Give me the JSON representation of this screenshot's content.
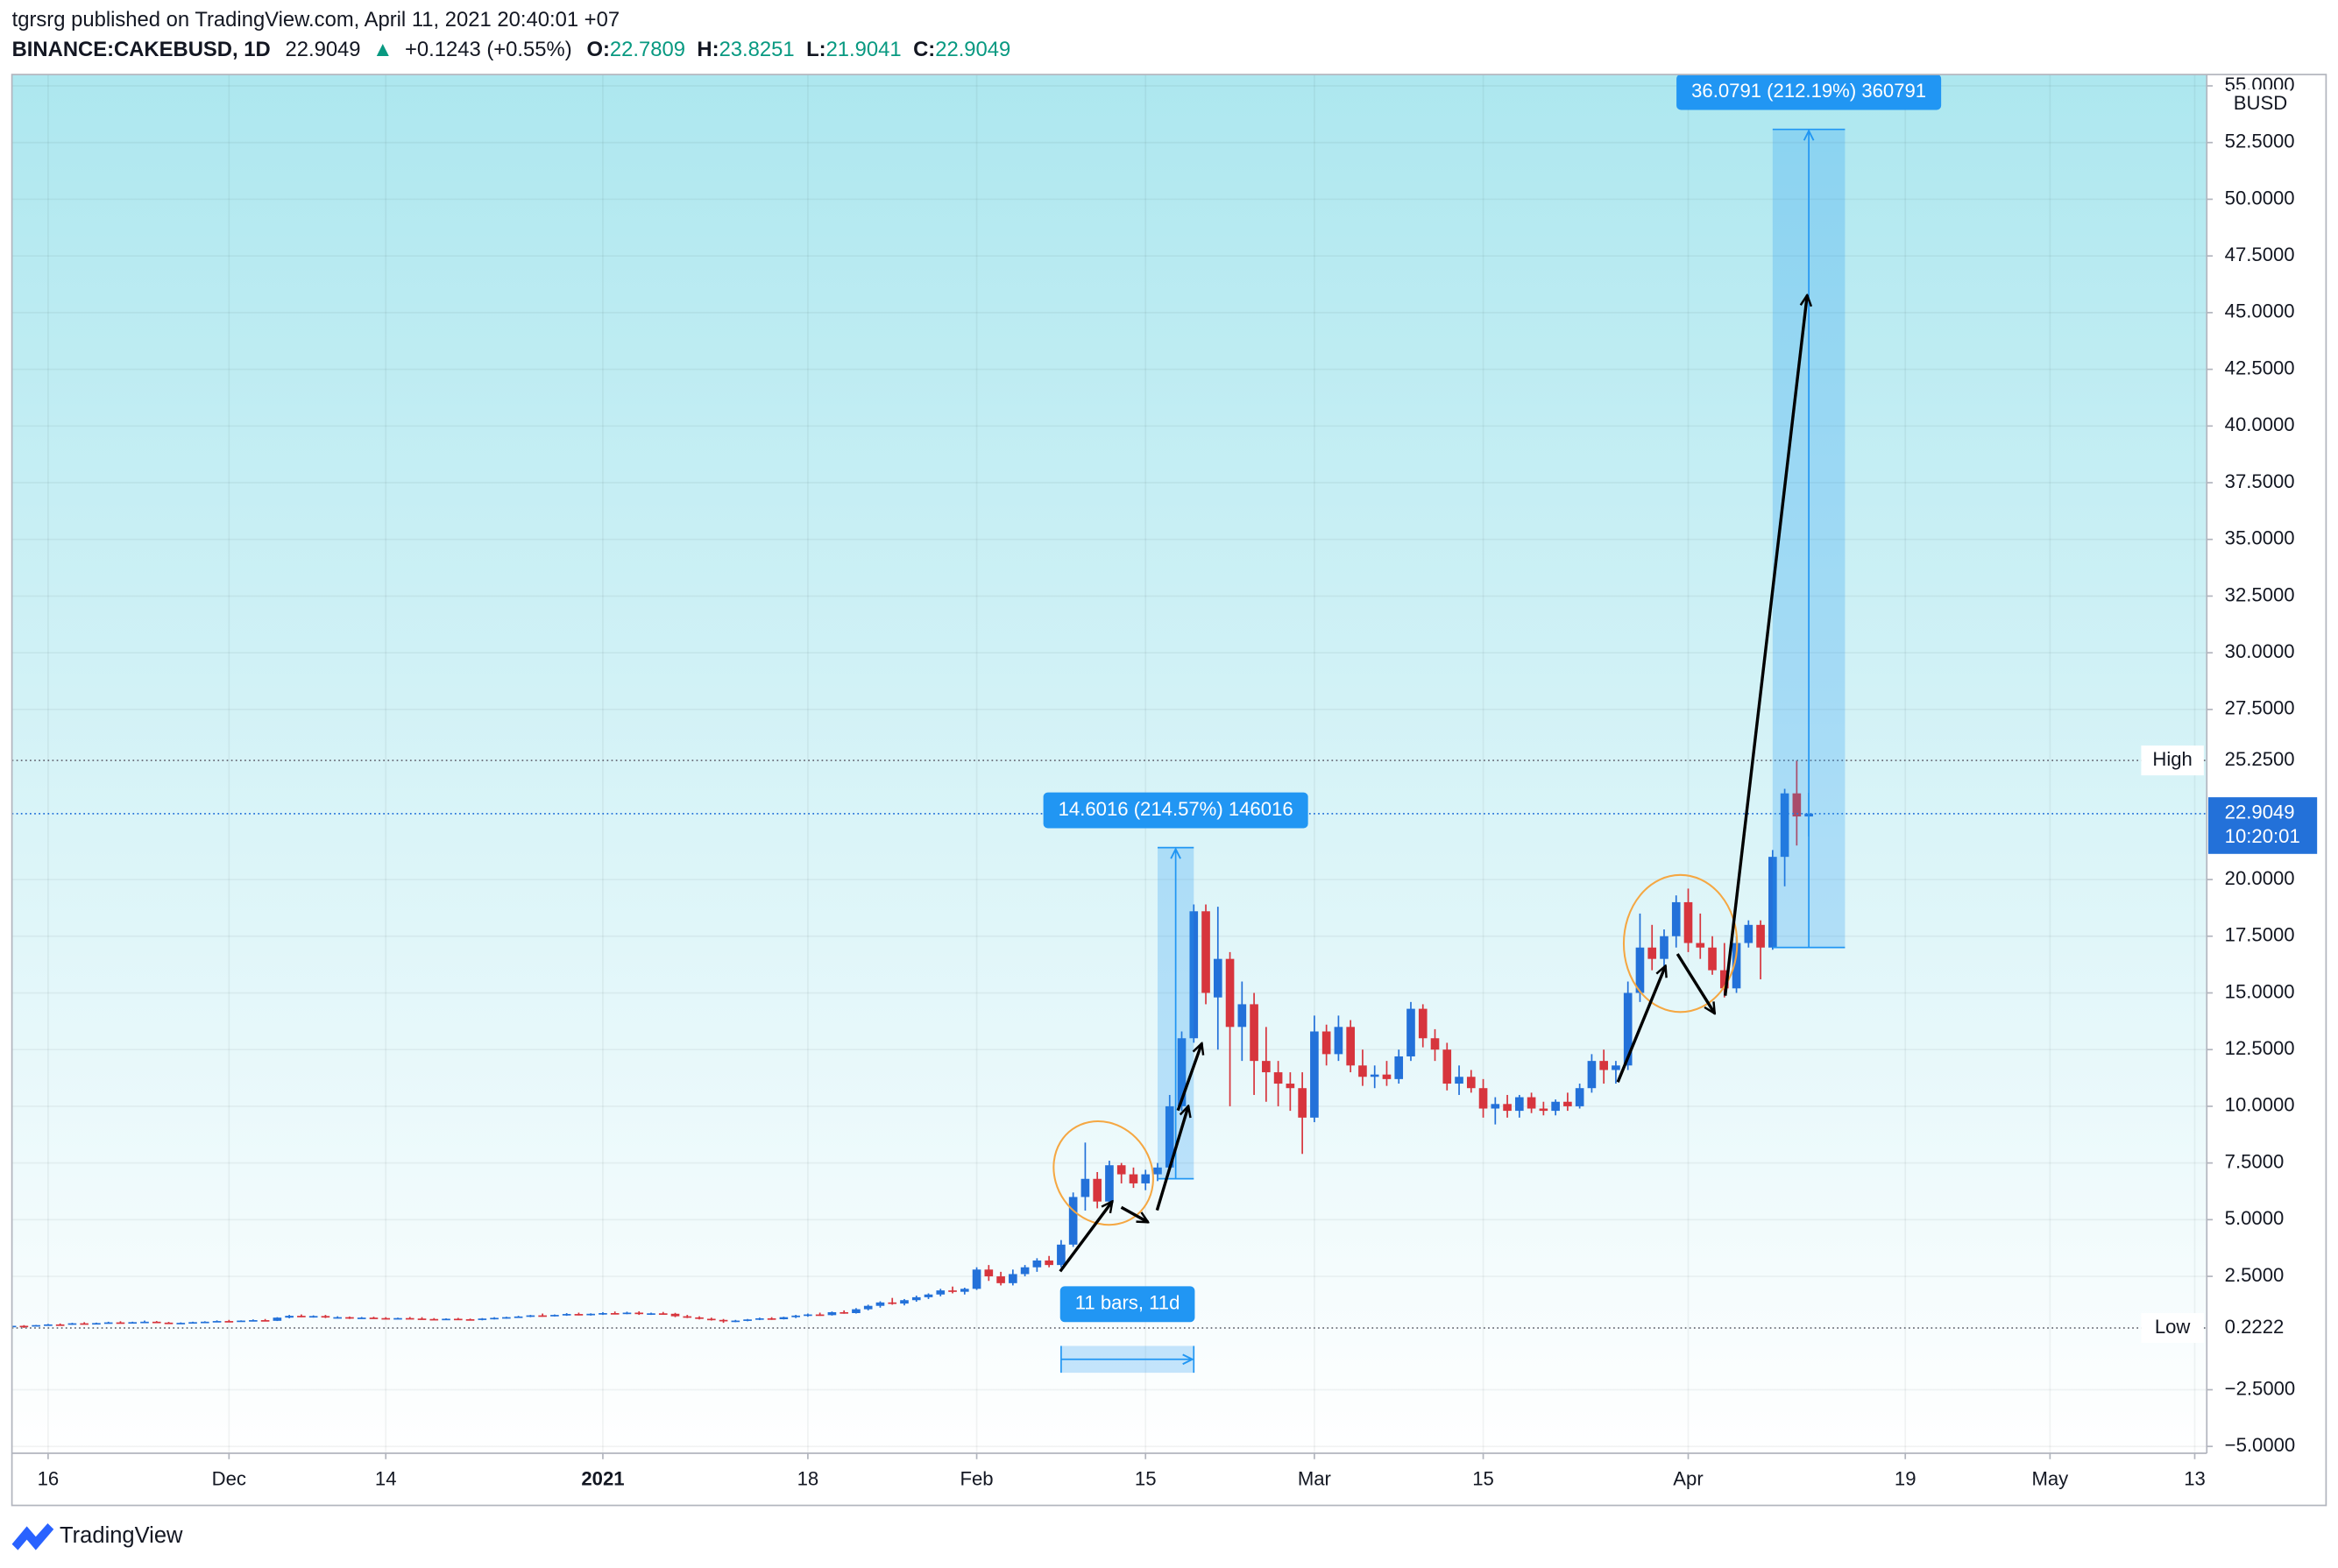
{
  "chart_data": {
    "type": "candlestick",
    "subtitle": "tgrsrg published on TradingView.com, April 11, 2021 20:40:01 +07",
    "title": "BINANCE:CAKEBUSD, 1D",
    "change_arrow": "▲",
    "change": "+0.1243 (+0.55%)",
    "ohlc_labels": [
      "O:",
      "H:",
      "L:",
      "C:"
    ],
    "currency": "BUSD",
    "countdown": "10:20:01",
    "up_color": "#2371d9",
    "down_color": "#d7353d",
    "x": [
      "2020-11-13",
      "2020-11-14",
      "2020-11-15",
      "2020-11-16",
      "2020-11-17",
      "2020-11-18",
      "2020-11-19",
      "2020-11-20",
      "2020-11-21",
      "2020-11-22",
      "2020-11-23",
      "2020-11-24",
      "2020-11-25",
      "2020-11-26",
      "2020-11-27",
      "2020-11-28",
      "2020-11-29",
      "2020-11-30",
      "2020-12-01",
      "2020-12-02",
      "2020-12-03",
      "2020-12-04",
      "2020-12-05",
      "2020-12-06",
      "2020-12-07",
      "2020-12-08",
      "2020-12-09",
      "2020-12-10",
      "2020-12-11",
      "2020-12-12",
      "2020-12-13",
      "2020-12-14",
      "2020-12-15",
      "2020-12-16",
      "2020-12-17",
      "2020-12-18",
      "2020-12-19",
      "2020-12-20",
      "2020-12-21",
      "2020-12-22",
      "2020-12-23",
      "2020-12-24",
      "2020-12-25",
      "2020-12-26",
      "2020-12-27",
      "2020-12-28",
      "2020-12-29",
      "2020-12-30",
      "2020-12-31",
      "2021-01-01",
      "2021-01-02",
      "2021-01-03",
      "2021-01-04",
      "2021-01-05",
      "2021-01-06",
      "2021-01-07",
      "2021-01-08",
      "2021-01-09",
      "2021-01-10",
      "2021-01-11",
      "2021-01-12",
      "2021-01-13",
      "2021-01-14",
      "2021-01-15",
      "2021-01-16",
      "2021-01-17",
      "2021-01-18",
      "2021-01-19",
      "2021-01-20",
      "2021-01-21",
      "2021-01-22",
      "2021-01-23",
      "2021-01-24",
      "2021-01-25",
      "2021-01-26",
      "2021-01-27",
      "2021-01-28",
      "2021-01-29",
      "2021-01-30",
      "2021-01-31",
      "2021-02-01",
      "2021-02-02",
      "2021-02-03",
      "2021-02-04",
      "2021-02-05",
      "2021-02-06",
      "2021-02-07",
      "2021-02-08",
      "2021-02-09",
      "2021-02-10",
      "2021-02-11",
      "2021-02-12",
      "2021-02-13",
      "2021-02-14",
      "2021-02-15",
      "2021-02-16",
      "2021-02-17",
      "2021-02-18",
      "2021-02-19",
      "2021-02-20",
      "2021-02-21",
      "2021-02-22",
      "2021-02-23",
      "2021-02-24",
      "2021-02-25",
      "2021-02-26",
      "2021-02-27",
      "2021-02-28",
      "2021-03-01",
      "2021-03-02",
      "2021-03-03",
      "2021-03-04",
      "2021-03-05",
      "2021-03-06",
      "2021-03-07",
      "2021-03-08",
      "2021-03-09",
      "2021-03-10",
      "2021-03-11",
      "2021-03-12",
      "2021-03-13",
      "2021-03-14",
      "2021-03-15",
      "2021-03-16",
      "2021-03-17",
      "2021-03-18",
      "2021-03-19",
      "2021-03-20",
      "2021-03-21",
      "2021-03-22",
      "2021-03-23",
      "2021-03-24",
      "2021-03-25",
      "2021-03-26",
      "2021-03-27",
      "2021-03-28",
      "2021-03-29",
      "2021-03-30",
      "2021-03-31",
      "2021-04-01",
      "2021-04-02",
      "2021-04-03",
      "2021-04-04",
      "2021-04-05",
      "2021-04-06",
      "2021-04-07",
      "2021-04-08",
      "2021-04-09",
      "2021-04-10",
      "2021-04-11"
    ],
    "open": [
      0.3,
      0.32,
      0.31,
      0.35,
      0.38,
      0.37,
      0.43,
      0.41,
      0.44,
      0.47,
      0.45,
      0.48,
      0.5,
      0.46,
      0.42,
      0.45,
      0.48,
      0.5,
      0.53,
      0.51,
      0.55,
      0.57,
      0.54,
      0.68,
      0.76,
      0.72,
      0.75,
      0.69,
      0.7,
      0.65,
      0.68,
      0.66,
      0.63,
      0.66,
      0.64,
      0.62,
      0.6,
      0.63,
      0.61,
      0.58,
      0.64,
      0.67,
      0.7,
      0.73,
      0.78,
      0.75,
      0.8,
      0.84,
      0.81,
      0.85,
      0.88,
      0.86,
      0.9,
      0.84,
      0.87,
      0.85,
      0.74,
      0.69,
      0.63,
      0.58,
      0.52,
      0.55,
      0.6,
      0.65,
      0.61,
      0.7,
      0.77,
      0.82,
      0.79,
      0.92,
      0.88,
      1.05,
      1.2,
      1.35,
      1.3,
      1.45,
      1.58,
      1.7,
      1.88,
      1.82,
      1.95,
      2.8,
      2.5,
      2.2,
      2.6,
      2.9,
      3.2,
      3.0,
      3.9,
      6.0,
      6.8,
      5.8,
      7.4,
      7.0,
      6.6,
      7.0,
      7.3,
      10.0,
      13.0,
      18.6,
      14.8,
      16.5,
      13.5,
      14.5,
      12.0,
      11.5,
      11.0,
      10.8,
      9.5,
      13.3,
      12.3,
      13.5,
      11.8,
      11.3,
      11.4,
      11.2,
      12.2,
      14.3,
      13.0,
      12.5,
      11.0,
      11.3,
      10.8,
      9.9,
      10.1,
      9.8,
      10.4,
      9.9,
      9.8,
      10.2,
      10.0,
      10.8,
      12.0,
      11.6,
      11.8,
      15.0,
      17.0,
      16.5,
      17.5,
      19.0,
      17.2,
      17.0,
      16.0,
      15.2,
      17.2,
      18.0,
      17.0,
      21.0,
      23.8,
      22.7809
    ],
    "high": [
      0.34,
      0.35,
      0.36,
      0.4,
      0.42,
      0.45,
      0.48,
      0.46,
      0.5,
      0.52,
      0.5,
      0.55,
      0.53,
      0.49,
      0.47,
      0.5,
      0.52,
      0.56,
      0.58,
      0.56,
      0.6,
      0.62,
      0.7,
      0.8,
      0.82,
      0.78,
      0.8,
      0.74,
      0.73,
      0.71,
      0.72,
      0.7,
      0.68,
      0.71,
      0.7,
      0.66,
      0.65,
      0.67,
      0.64,
      0.66,
      0.7,
      0.72,
      0.76,
      0.8,
      0.86,
      0.82,
      0.88,
      0.9,
      0.87,
      0.92,
      0.95,
      0.94,
      0.96,
      0.9,
      0.93,
      0.89,
      0.8,
      0.74,
      0.68,
      0.62,
      0.58,
      0.62,
      0.68,
      0.7,
      0.72,
      0.8,
      0.86,
      0.9,
      0.95,
      1.0,
      1.1,
      1.25,
      1.4,
      1.55,
      1.5,
      1.65,
      1.75,
      1.95,
      2.05,
      2.0,
      2.9,
      3.0,
      2.7,
      2.8,
      3.0,
      3.3,
      3.4,
      4.1,
      6.2,
      8.4,
      7.1,
      7.6,
      7.5,
      7.3,
      7.2,
      7.5,
      10.5,
      13.3,
      18.9,
      18.9,
      18.8,
      16.8,
      15.5,
      15.0,
      13.5,
      12.0,
      11.5,
      11.5,
      14.0,
      13.6,
      14.0,
      13.8,
      12.5,
      11.8,
      12.0,
      12.5,
      14.6,
      14.5,
      13.4,
      12.8,
      11.8,
      11.6,
      11.2,
      10.4,
      10.5,
      10.5,
      10.6,
      10.2,
      10.3,
      10.6,
      11.0,
      12.3,
      12.5,
      12.0,
      15.5,
      18.5,
      18.0,
      17.8,
      19.3,
      19.6,
      18.5,
      17.5,
      17.2,
      17.5,
      18.2,
      18.2,
      21.3,
      24.0,
      25.25,
      23.8251
    ],
    "low": [
      0.28,
      0.2222,
      0.3,
      0.33,
      0.36,
      0.36,
      0.4,
      0.39,
      0.42,
      0.44,
      0.43,
      0.46,
      0.44,
      0.4,
      0.4,
      0.43,
      0.46,
      0.48,
      0.49,
      0.5,
      0.53,
      0.52,
      0.53,
      0.65,
      0.7,
      0.68,
      0.66,
      0.64,
      0.62,
      0.63,
      0.64,
      0.6,
      0.61,
      0.63,
      0.6,
      0.58,
      0.58,
      0.59,
      0.55,
      0.56,
      0.6,
      0.63,
      0.68,
      0.7,
      0.72,
      0.73,
      0.76,
      0.78,
      0.77,
      0.8,
      0.82,
      0.83,
      0.8,
      0.8,
      0.82,
      0.7,
      0.66,
      0.6,
      0.55,
      0.45,
      0.48,
      0.52,
      0.57,
      0.58,
      0.6,
      0.66,
      0.72,
      0.76,
      0.77,
      0.85,
      0.86,
      1.0,
      1.12,
      1.25,
      1.22,
      1.38,
      1.5,
      1.62,
      1.75,
      1.7,
      1.9,
      2.3,
      2.1,
      2.1,
      2.5,
      2.7,
      2.9,
      2.9,
      3.8,
      5.4,
      5.5,
      5.6,
      6.6,
      6.4,
      6.3,
      6.7,
      7.2,
      9.8,
      12.8,
      14.5,
      12.5,
      10.0,
      12.0,
      10.5,
      10.2,
      10.0,
      9.8,
      7.9,
      9.3,
      11.8,
      12.0,
      11.5,
      10.9,
      10.8,
      10.9,
      11.0,
      12.0,
      12.6,
      12.0,
      10.7,
      10.5,
      10.6,
      9.5,
      9.2,
      9.5,
      9.5,
      9.7,
      9.6,
      9.6,
      9.8,
      9.9,
      10.6,
      11.0,
      11.0,
      11.6,
      14.6,
      16.0,
      16.0,
      17.0,
      16.8,
      16.5,
      15.8,
      14.8,
      15.0,
      17.0,
      15.6,
      16.9,
      19.7,
      21.5,
      21.9041
    ],
    "close": [
      0.32,
      0.31,
      0.35,
      0.38,
      0.37,
      0.43,
      0.41,
      0.44,
      0.47,
      0.45,
      0.48,
      0.5,
      0.46,
      0.42,
      0.45,
      0.48,
      0.5,
      0.53,
      0.51,
      0.55,
      0.57,
      0.54,
      0.68,
      0.76,
      0.72,
      0.75,
      0.69,
      0.7,
      0.65,
      0.68,
      0.66,
      0.63,
      0.66,
      0.64,
      0.62,
      0.6,
      0.63,
      0.61,
      0.58,
      0.64,
      0.67,
      0.7,
      0.73,
      0.78,
      0.75,
      0.8,
      0.84,
      0.81,
      0.85,
      0.88,
      0.86,
      0.9,
      0.84,
      0.87,
      0.85,
      0.74,
      0.69,
      0.63,
      0.58,
      0.52,
      0.55,
      0.6,
      0.65,
      0.61,
      0.7,
      0.77,
      0.82,
      0.79,
      0.92,
      0.88,
      1.05,
      1.2,
      1.35,
      1.3,
      1.45,
      1.58,
      1.7,
      1.88,
      1.82,
      1.95,
      2.8,
      2.5,
      2.2,
      2.6,
      2.9,
      3.2,
      3.0,
      3.9,
      6.0,
      6.8,
      5.8,
      7.4,
      7.0,
      6.6,
      7.0,
      7.3,
      10.0,
      13.0,
      18.6,
      15.0,
      16.5,
      13.5,
      14.5,
      12.0,
      11.5,
      11.0,
      10.8,
      9.5,
      13.3,
      12.3,
      13.5,
      11.8,
      11.3,
      11.4,
      11.2,
      12.2,
      14.3,
      13.0,
      12.5,
      11.0,
      11.3,
      10.8,
      9.9,
      10.1,
      9.8,
      10.4,
      9.9,
      9.8,
      10.2,
      10.0,
      10.8,
      12.0,
      11.6,
      11.8,
      15.0,
      17.0,
      16.5,
      17.5,
      19.0,
      17.2,
      17.0,
      16.0,
      15.2,
      17.2,
      18.0,
      17.0,
      21.0,
      23.8,
      22.7806,
      22.9049
    ],
    "xlim": [
      "2020-11-13",
      "2021-05-14"
    ],
    "xticks": [
      {
        "value": "2020-11-16",
        "label": "16"
      },
      {
        "value": "2020-12-01",
        "label": "Dec"
      },
      {
        "value": "2020-12-14",
        "label": "14"
      },
      {
        "value": "2021-01-01",
        "label": "2021"
      },
      {
        "value": "2021-01-18",
        "label": "18"
      },
      {
        "value": "2021-02-01",
        "label": "Feb"
      },
      {
        "value": "2021-02-15",
        "label": "15"
      },
      {
        "value": "2021-03-01",
        "label": "Mar"
      },
      {
        "value": "2021-03-15",
        "label": "15"
      },
      {
        "value": "2021-04-01",
        "label": "Apr"
      },
      {
        "value": "2021-04-19",
        "label": "19"
      },
      {
        "value": "2021-05-01",
        "label": "May"
      },
      {
        "value": "2021-05-13",
        "label": "13"
      }
    ],
    "ylim": [
      -5.3,
      55.5
    ],
    "yticks": [
      {
        "value": -5,
        "label": "−5.0000"
      },
      {
        "value": -2.5,
        "label": "−2.5000"
      },
      {
        "value": 2.5,
        "label": "2.5000"
      },
      {
        "value": 5,
        "label": "5.0000"
      },
      {
        "value": 7.5,
        "label": "7.5000"
      },
      {
        "value": 10,
        "label": "10.0000"
      },
      {
        "value": 12.5,
        "label": "12.5000"
      },
      {
        "value": 15,
        "label": "15.0000"
      },
      {
        "value": 17.5,
        "label": "17.5000"
      },
      {
        "value": 20,
        "label": "20.0000"
      },
      {
        "value": 27.5,
        "label": "27.5000"
      },
      {
        "value": 30,
        "label": "30.0000"
      },
      {
        "value": 32.5,
        "label": "32.5000"
      },
      {
        "value": 35,
        "label": "35.0000"
      },
      {
        "value": 37.5,
        "label": "37.5000"
      },
      {
        "value": 40,
        "label": "40.0000"
      },
      {
        "value": 42.5,
        "label": "42.5000"
      },
      {
        "value": 45,
        "label": "45.0000"
      },
      {
        "value": 47.5,
        "label": "47.5000"
      },
      {
        "value": 50,
        "label": "50.0000"
      },
      {
        "value": 52.5,
        "label": "52.5000"
      },
      {
        "value": 55,
        "label": "55.0000"
      }
    ],
    "grid": true,
    "price_lines": [
      {
        "name": "High",
        "value": 25.25,
        "label": "25.2500"
      },
      {
        "name": "Low",
        "value": 0.2222,
        "label": "0.2222"
      }
    ],
    "measures": [
      {
        "label": "14.6016 (214.57%) 146016",
        "from_date": "2021-02-16",
        "to_date": "2021-02-19",
        "from_price": 6.805,
        "to_price": 21.4066
      },
      {
        "label": "36.0791 (212.19%) 360791",
        "from_date": "2021-04-08",
        "to_date": "2021-04-14",
        "from_price": 17.003,
        "to_price": 53.0821
      }
    ],
    "range": {
      "label": "11 bars, 11d",
      "from": "2021-02-08",
      "to": "2021-02-19"
    }
  },
  "footer": {
    "brand": "TradingView"
  }
}
